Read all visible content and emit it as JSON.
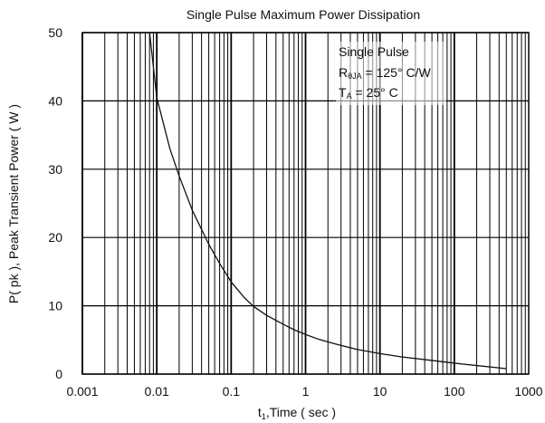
{
  "chart_data": {
    "type": "line",
    "title": "Single Pulse Maximum Power Dissipation",
    "ylabel": "P( pk ), Peak Transient Power ( W )",
    "xlabel": {
      "prefix": "t",
      "sub": "1",
      "rest": ",Time ( sec )"
    },
    "x_scale": "log",
    "xlim": [
      0.001,
      1000
    ],
    "ylim": [
      0,
      50
    ],
    "x_ticks": [
      "0.001",
      "0.01",
      "0.1",
      "1",
      "10",
      "100",
      "1000"
    ],
    "y_ticks": [
      "0",
      "10",
      "20",
      "30",
      "40",
      "50"
    ],
    "grid": true,
    "annotation": {
      "line1": "Single Pulse",
      "line2_main": "R",
      "line2_sub": "θJA",
      "line2_rest": " = 125° C/W",
      "line3_main": "T",
      "line3_sub": "A",
      "line3_rest": " = 25° C",
      "placement": "top-right"
    },
    "series": [
      {
        "color": "#111111",
        "x": [
          0.008,
          0.009,
          0.01,
          0.015,
          0.02,
          0.03,
          0.05,
          0.07,
          0.1,
          0.15,
          0.2,
          0.3,
          0.5,
          0.7,
          1,
          1.5,
          2,
          3,
          5,
          10,
          20,
          50,
          100,
          200,
          500
        ],
        "y": [
          50,
          45,
          40.5,
          33,
          29,
          24,
          19,
          16.2,
          13.5,
          11.2,
          9.9,
          8.6,
          7.3,
          6.5,
          5.8,
          5.1,
          4.7,
          4.2,
          3.6,
          3.0,
          2.5,
          2.0,
          1.6,
          1.25,
          0.8
        ]
      }
    ]
  }
}
